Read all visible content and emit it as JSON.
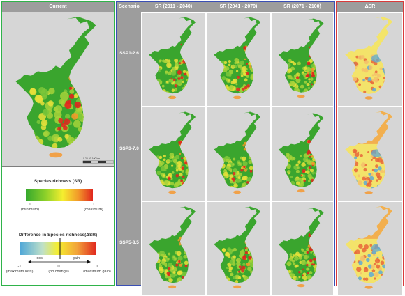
{
  "current_header": "Current",
  "scenario_header": "Scenario",
  "period_headers": [
    "SR (2011 - 2040)",
    "SR (2041 - 2070)",
    "SR (2071 - 2100)"
  ],
  "delta_header": "ΔSR",
  "scenarios": [
    "SSP1-2.6",
    "SSP3-7.0",
    "SSP5-8.5"
  ],
  "scale_bar": "0 25 50 100 km",
  "legend_sr": {
    "title": "Species richness (SR)",
    "min_value": "0",
    "min_label": "(minimum)",
    "max_value": "1",
    "max_label": "(maximum)",
    "colors": [
      "#35a82d",
      "#8fd12a",
      "#f5ee2f",
      "#f29a2a",
      "#e0261e"
    ]
  },
  "legend_dsr": {
    "title": "Difference in Species richness(ΔSR)",
    "loss_label": "loss",
    "gain_label": "gain",
    "min_value": "-1",
    "min_label": "(maximum loss)",
    "mid_value": "0",
    "mid_label": "(no change)",
    "max_value": "1",
    "max_label": "(maximum gain)",
    "colors": [
      "#4da6d8",
      "#bfe0c8",
      "#f5ee2f",
      "#f2a33a",
      "#e0261e"
    ]
  },
  "colors": {
    "current_border": "#2fb34a",
    "scenario_border": "#3a4fb4",
    "delta_border": "#d93a3a",
    "header_gray": "#9d9d9d",
    "map_background": "#d6d6d6",
    "land_green": "#3aa52e",
    "hotspot_red": "#e0261e",
    "delta_yellow": "#f3e36a",
    "delta_orange": "#f1a148",
    "delta_blue": "#5fa9d3"
  }
}
